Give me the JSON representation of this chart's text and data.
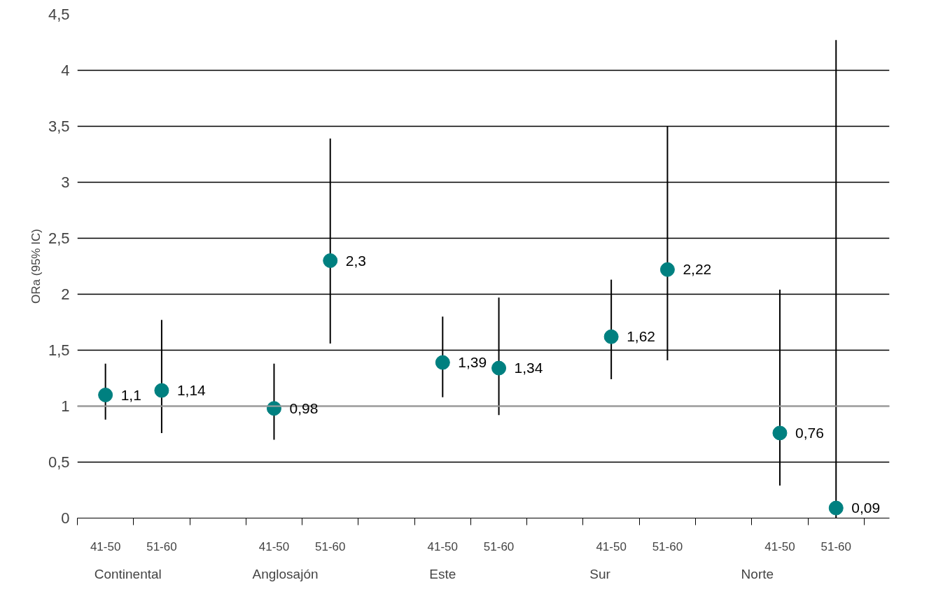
{
  "chart_data": {
    "type": "scatter",
    "ylabel": "ORa (95% IC)",
    "categories": [
      "41-50",
      "51-60",
      null,
      "41-50",
      "51-60",
      null,
      "41-50",
      "51-60",
      null,
      "41-50",
      "51-60",
      null,
      "41-50",
      "51-60"
    ],
    "series": [
      {
        "color": "#008080",
        "values": [
          1.1,
          1.14,
          null,
          0.98,
          2.3,
          null,
          1.39,
          1.34,
          null,
          1.62,
          2.22,
          null,
          0.76,
          0.09
        ],
        "errors": [
          [
            0.88,
            1.38
          ],
          [
            0.76,
            1.77
          ],
          null,
          [
            0.7,
            1.38
          ],
          [
            1.56,
            3.39
          ],
          null,
          [
            1.08,
            1.8
          ],
          [
            0.92,
            1.97
          ],
          null,
          [
            1.24,
            2.13
          ],
          [
            1.41,
            3.5
          ],
          null,
          [
            0.29,
            2.04
          ],
          [
            0,
            4.27
          ]
        ],
        "value_labels": [
          "1,1",
          "1,14",
          null,
          "0,98",
          "2,3",
          null,
          "1,39",
          "1,34",
          null,
          "1,62",
          "2,22",
          null,
          "0,76",
          "0,09"
        ]
      }
    ],
    "ylim": [
      0,
      4.5
    ],
    "yticks": [
      0,
      {
        "value": 0.5,
        "label": "0,5"
      },
      1,
      {
        "value": 1.5,
        "label": "1,5"
      },
      2,
      {
        "value": 2.5,
        "label": "2,5"
      },
      3,
      {
        "value": 3.5,
        "label": "3,5"
      },
      4,
      {
        "value": 4.5,
        "label": "4,5"
      }
    ],
    "grid": "y",
    "marker": "circle",
    "ref_lines": [
      {
        "axis": "y",
        "value": 1,
        "color": "#a0a0a0"
      }
    ],
    "annotations": [
      "Continental",
      "Anglosajón",
      "Este",
      "Sur",
      "Norte"
    ]
  }
}
